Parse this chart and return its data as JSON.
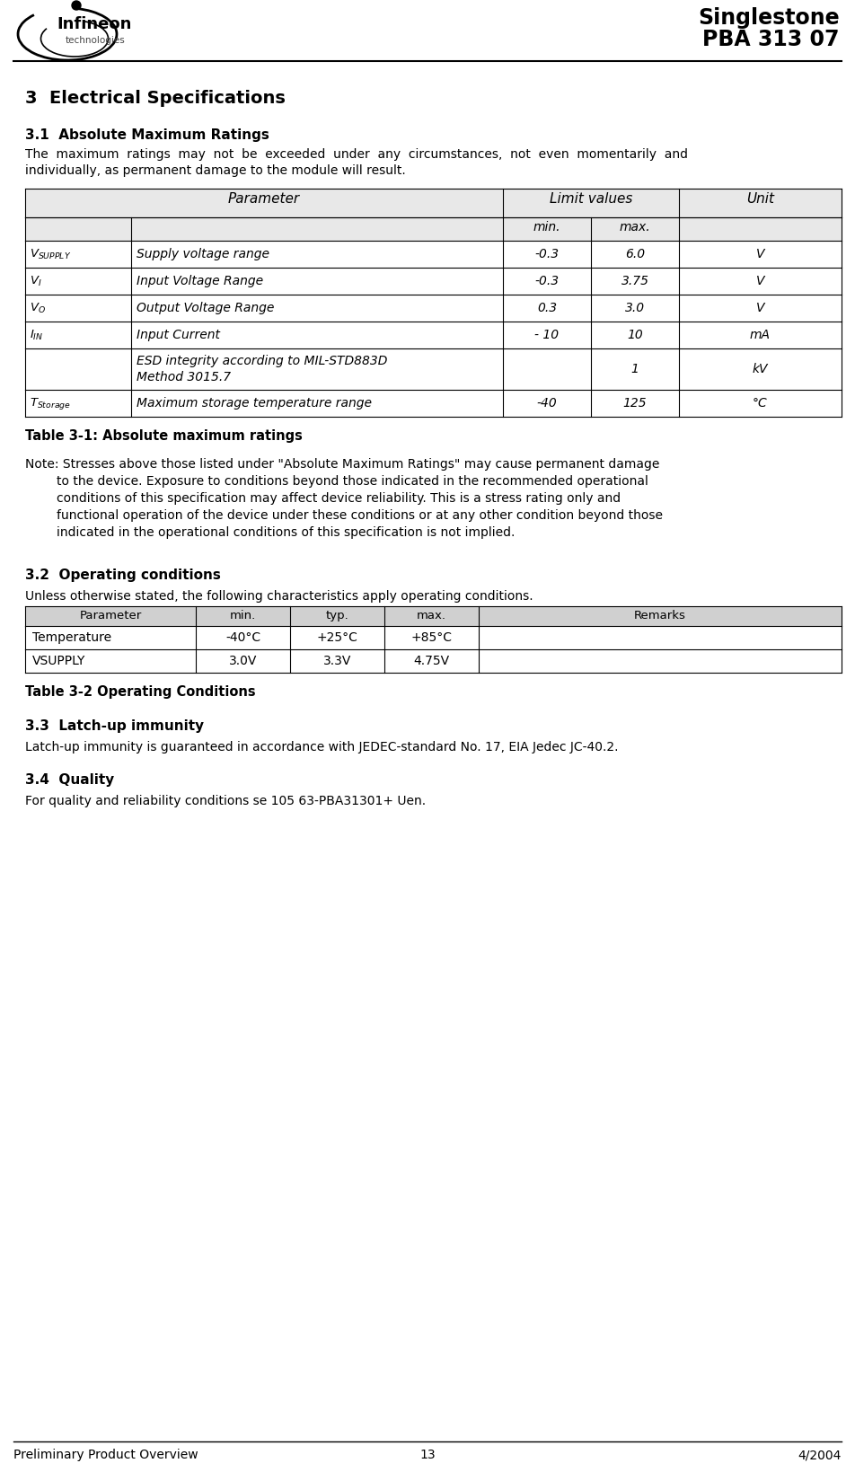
{
  "bg_color": "#ffffff",
  "header_title1": "Singlestone",
  "header_title2": "PBA 313 07",
  "footer_left": "Preliminary Product Overview",
  "footer_center": "13",
  "footer_right": "4/2004",
  "section_title": "3  Electrical Specifications",
  "sub31_title": "3.1  Absolute Maximum Ratings",
  "sub31_line1": "The  maximum  ratings  may  not  be  exceeded  under  any  circumstances,  not  even  momentarily  and",
  "sub31_line2": "individually, as permanent damage to the module will result.",
  "table1_param_header": "Parameter",
  "table1_limit_header": "Limit values",
  "table1_unit_header": "Unit",
  "table1_min_header": "min.",
  "table1_max_header": "max.",
  "table1_rows": [
    {
      "sym": "V_SUPPLY",
      "param": "Supply voltage range",
      "min": "-0.3",
      "max": "6.0",
      "unit": "V"
    },
    {
      "sym": "V_I",
      "param": "Input Voltage Range",
      "min": "-0.3",
      "max": "3.75",
      "unit": "V"
    },
    {
      "sym": "V_O",
      "param": "Output Voltage Range",
      "min": "0.3",
      "max": "3.0",
      "unit": "V"
    },
    {
      "sym": "I_IN",
      "param": "Input Current",
      "min": "- 10",
      "max": "10",
      "unit": "mA"
    },
    {
      "sym": "",
      "param": "ESD integrity according to MIL-STD883D\nMethod 3015.7",
      "min": "",
      "max": "1",
      "unit": "kV"
    },
    {
      "sym": "T_Storage",
      "param": "Maximum storage temperature range",
      "min": "-40",
      "max": "125",
      "unit": "°C"
    }
  ],
  "table1_caption": "Table 3-1: Absolute maximum ratings",
  "note_line1": "Note: Stresses above those listed under \"Absolute Maximum Ratings\" may cause permanent damage",
  "note_line2": "        to the device. Exposure to conditions beyond those indicated in the recommended operational",
  "note_line3": "        conditions of this specification may affect device reliability. This is a stress rating only and",
  "note_line4": "        functional operation of the device under these conditions or at any other condition beyond those",
  "note_line5": "        indicated in the operational conditions of this specification is not implied.",
  "sub32_title": "3.2  Operating conditions",
  "sub32_intro": "Unless otherwise stated, the following characteristics apply operating conditions.",
  "table2_headers": [
    "Parameter",
    "min.",
    "typ.",
    "max.",
    "Remarks"
  ],
  "table2_rows": [
    [
      "Temperature",
      "-40°C",
      "+25°C",
      "+85°C",
      ""
    ],
    [
      "VSUPPLY",
      "3.0V",
      "3.3V",
      "4.75V",
      ""
    ]
  ],
  "table2_caption": "Table 3-2 Operating Conditions",
  "sub33_title": "3.3  Latch-up immunity",
  "sub33_body": "Latch-up immunity is guaranteed in accordance with JEDEC-standard No. 17, EIA Jedec JC-40.2.",
  "sub34_title": "3.4  Quality",
  "sub34_body": "For quality and reliability conditions se 105 63-PBA31301+ Uen."
}
